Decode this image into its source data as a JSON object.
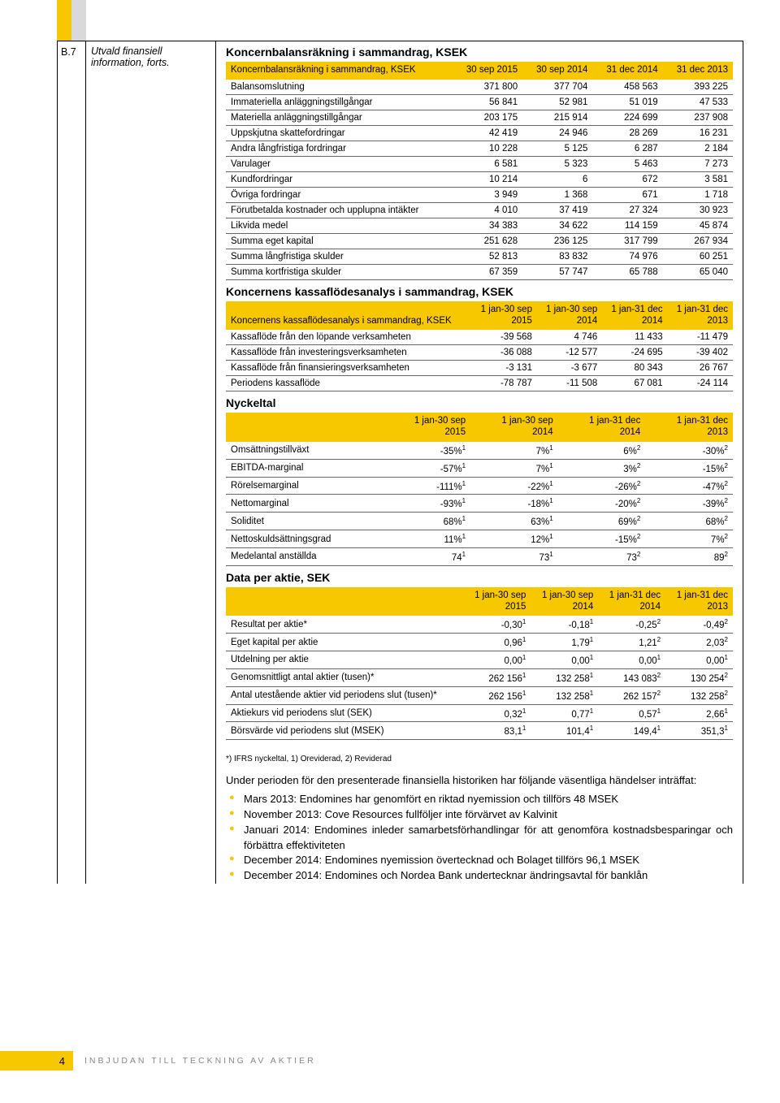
{
  "section_code": "B.7",
  "section_title_1": "Utvald finansiell",
  "section_title_2": "information, forts.",
  "balance_sheet": {
    "title": "Koncernbalansräkning i sammandrag, KSEK",
    "header_label": "Koncernbalansräkning i sammandrag, KSEK",
    "cols": [
      "30 sep 2015",
      "30 sep 2014",
      "31 dec 2014",
      "31 dec 2013"
    ],
    "rows": [
      [
        "Balansomslutning",
        "371 800",
        "377 704",
        "458 563",
        "393 225"
      ],
      [
        "Immateriella anläggningstillgångar",
        "56 841",
        "52 981",
        "51 019",
        "47 533"
      ],
      [
        "Materiella anläggningstillgångar",
        "203 175",
        "215 914",
        "224 699",
        "237 908"
      ],
      [
        "Uppskjutna skattefordringar",
        "42 419",
        "24 946",
        "28 269",
        "16 231"
      ],
      [
        "Andra långfristiga fordringar",
        "10 228",
        "5 125",
        "6 287",
        "2 184"
      ],
      [
        "Varulager",
        "6 581",
        "5 323",
        "5 463",
        "7 273"
      ],
      [
        "Kundfordringar",
        "10 214",
        "6",
        "672",
        "3 581"
      ],
      [
        "Övriga fordringar",
        "3 949",
        "1 368",
        "671",
        "1 718"
      ],
      [
        "Förutbetalda kostnader och upplupna intäkter",
        "4 010",
        "37 419",
        "27 324",
        "30 923"
      ],
      [
        "Likvida medel",
        "34 383",
        "34 622",
        "114 159",
        "45 874"
      ],
      [
        "Summa eget kapital",
        "251 628",
        "236 125",
        "317 799",
        "267 934"
      ],
      [
        "Summa långfristiga skulder",
        "52 813",
        "83 832",
        "74 976",
        "60 251"
      ],
      [
        "Summa kortfristiga skulder",
        "67 359",
        "57 747",
        "65 788",
        "65 040"
      ]
    ]
  },
  "cashflow": {
    "title": "Koncernens kassaflödesanalys i sammandrag, KSEK",
    "header_label": "Koncernens kassaflödesanalys i sammandrag, KSEK",
    "cols": [
      "1 jan-30 sep 2015",
      "1 jan-30 sep 2014",
      "1 jan-31 dec 2014",
      "1 jan-31 dec 2013"
    ],
    "rows": [
      [
        "Kassaflöde från den löpande verksamheten",
        "-39 568",
        "4 746",
        "11 433",
        "-11 479"
      ],
      [
        "Kassaflöde från investeringsverksamheten",
        "-36 088",
        "-12 577",
        "-24 695",
        "-39 402"
      ],
      [
        "Kassaflöde från finansieringsverksamheten",
        "-3 131",
        "-3 677",
        "80 343",
        "26 767"
      ],
      [
        "Periodens kassaflöde",
        "-78 787",
        "-11 508",
        "67 081",
        "-24 114"
      ]
    ]
  },
  "ratios": {
    "title": "Nyckeltal",
    "cols": [
      "1 jan-30 sep 2015",
      "1 jan-30 sep 2014",
      "1 jan-31 dec 2014",
      "1 jan-31 dec 2013"
    ],
    "rows": [
      [
        "Omsättningstillväxt",
        "-35%",
        "1",
        "7%",
        "1",
        "6%",
        "2",
        "-30%",
        "2"
      ],
      [
        "EBITDA-marginal",
        "-57%",
        "1",
        "7%",
        "1",
        "3%",
        "2",
        "-15%",
        "2"
      ],
      [
        "Rörelsemarginal",
        "-111%",
        "1",
        "-22%",
        "1",
        "-26%",
        "2",
        "-47%",
        "2"
      ],
      [
        "Nettomarginal",
        "-93%",
        "1",
        "-18%",
        "1",
        "-20%",
        "2",
        "-39%",
        "2"
      ],
      [
        "Soliditet",
        "68%",
        "1",
        "63%",
        "1",
        "69%",
        "2",
        "68%",
        "2"
      ],
      [
        "Nettoskuldsättningsgrad",
        "11%",
        "1",
        "12%",
        "1",
        "-15%",
        "2",
        "7%",
        "2"
      ],
      [
        "Medelantal anställda",
        "74",
        "1",
        "73",
        "1",
        "73",
        "2",
        "89",
        "2"
      ]
    ]
  },
  "pershare": {
    "title": "Data per aktie, SEK",
    "cols": [
      "1 jan-30 sep 2015",
      "1 jan-30 sep 2014",
      "1 jan-31 dec 2014",
      "1 jan-31 dec 2013"
    ],
    "rows": [
      [
        "Resultat per aktie*",
        "-0,30",
        "1",
        "-0,18",
        "1",
        "-0,25",
        "2",
        "-0,49",
        "2"
      ],
      [
        "Eget kapital per aktie",
        "0,96",
        "1",
        "1,79",
        "1",
        "1,21",
        "2",
        "2,03",
        "2"
      ],
      [
        "Utdelning per aktie",
        "0,00",
        "1",
        "0,00",
        "1",
        "0,00",
        "1",
        "0,00",
        "1"
      ],
      [
        "Genomsnittligt antal aktier (tusen)*",
        "262 156",
        "1",
        "132 258",
        "1",
        "143 083",
        "2",
        "130 254",
        "2"
      ],
      [
        "Antal utestående aktier vid periodens slut (tusen)*",
        "262 156",
        "1",
        "132 258",
        "1",
        "262 157",
        "2",
        "132 258",
        "2"
      ],
      [
        "Aktiekurs vid periodens slut (SEK)",
        "0,32",
        "1",
        "0,77",
        "1",
        "0,57",
        "1",
        "2,66",
        "1"
      ],
      [
        "Börsvärde vid periodens slut (MSEK)",
        "83,1",
        "1",
        "101,4",
        "1",
        "149,4",
        "1",
        "351,3",
        "1"
      ]
    ]
  },
  "footnote": "*) IFRS nyckeltal, 1) Oreviderad, 2) Reviderad",
  "paragraph": "Under perioden för den presenterade finansiella historiken har följande väsentliga händelser inträffat:",
  "bullets": [
    "Mars 2013: Endomines har genomfört en riktad nyemission och tillförs 48 MSEK",
    "November 2013: Cove Resources fullföljer inte förvärvet av Kalvinit",
    "Januari 2014: Endomines inleder samarbetsförhandlingar för att genomföra kostnadsbesparingar och förbättra effektiviteten",
    "December 2014: Endomines nyemission övertecknad och Bolaget tillförs 96,1 MSEK",
    "December 2014: Endomines och Nordea Bank undertecknar ändringsavtal för banklån"
  ],
  "footer_page": "4",
  "footer_text": "INBJUDAN TILL TECKNING AV AKTIER"
}
